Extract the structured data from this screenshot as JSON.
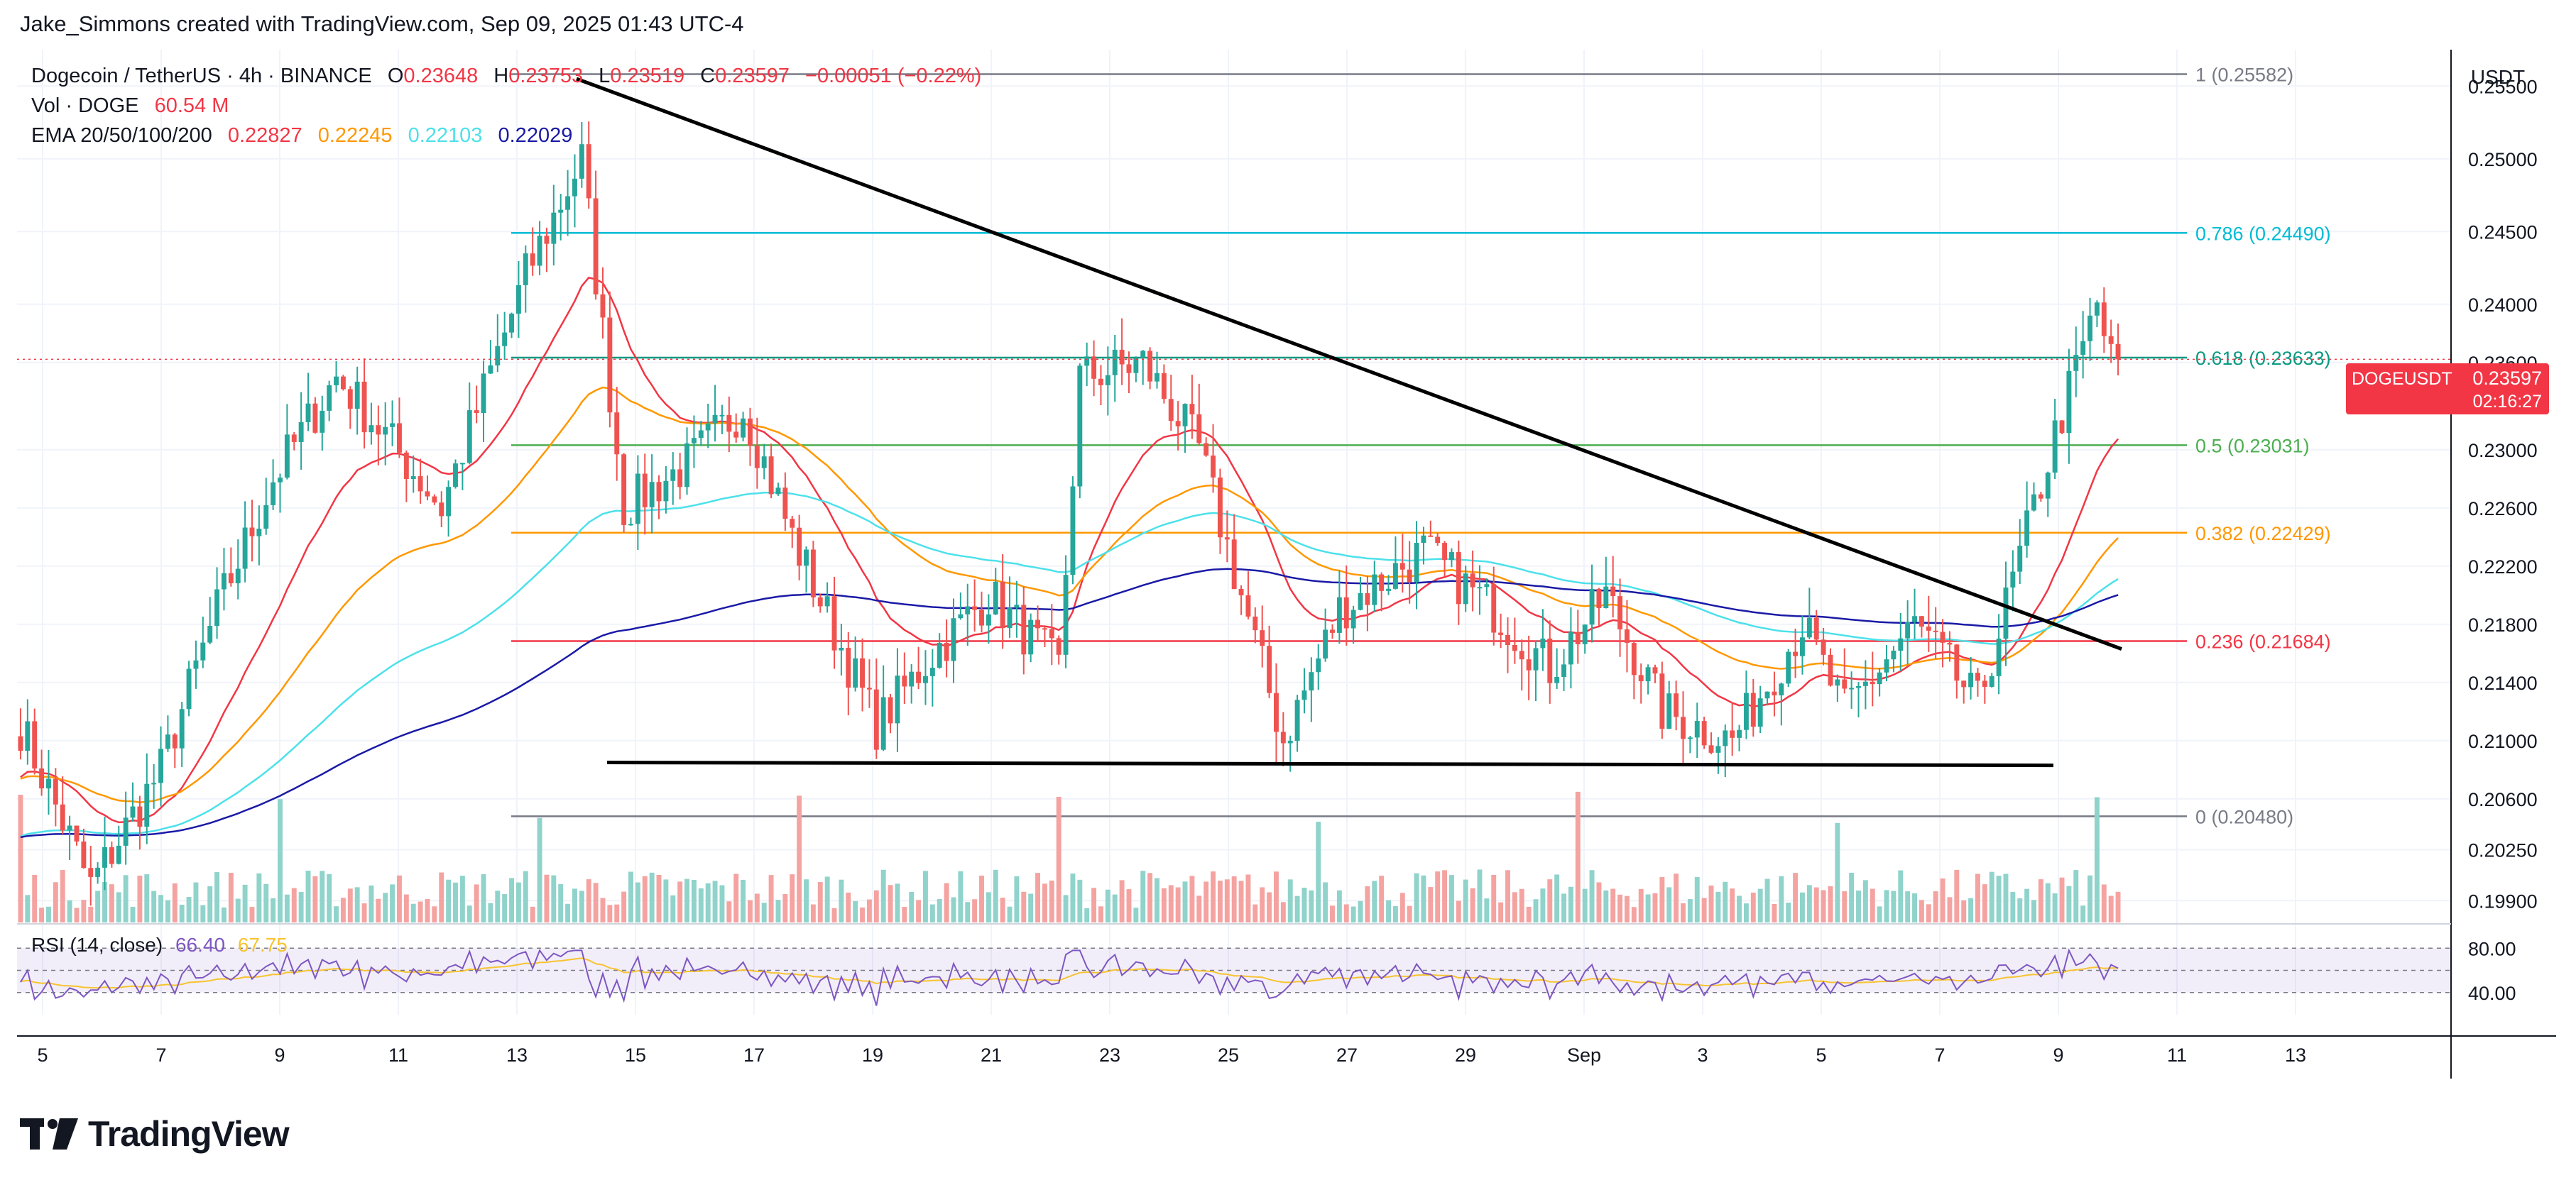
{
  "header": {
    "attribution": "Jake_Simmons created with TradingView.com, Sep 09, 2025 01:43 UTC-4"
  },
  "legend": {
    "symbol": "Dogecoin / TetherUS · 4h · BINANCE",
    "ohlc": [
      {
        "k": "O",
        "v": "0.23648"
      },
      {
        "k": "H",
        "v": "0.23753"
      },
      {
        "k": "L",
        "v": "0.23519"
      },
      {
        "k": "C",
        "v": "0.23597"
      }
    ],
    "change": "−0.00051 (−0.22%)",
    "vol_label": "Vol · DOGE",
    "vol_value": "60.54 M",
    "ema_label": "EMA 20/50/100/200",
    "ema_values": [
      {
        "v": "0.22827",
        "color": "#f23645"
      },
      {
        "v": "0.22245",
        "color": "#ff9800"
      },
      {
        "v": "0.22103",
        "color": "#4de1ea"
      },
      {
        "v": "0.22029",
        "color": "#1a1aa6"
      }
    ]
  },
  "rsi": {
    "label": "RSI (14, close)",
    "value": "66.40",
    "ma_value": "67.75",
    "upper": "80.00",
    "lower": "40.00"
  },
  "price_tag": {
    "symbol": "DOGEUSDT",
    "price": "0.23597",
    "countdown": "02:16:27"
  },
  "currency": "USDT",
  "branding": "TradingView",
  "colors": {
    "up": "#26a69a",
    "down": "#ef5350",
    "vol_up": "#8fd3cb",
    "vol_down": "#f4a3a1",
    "fib0": "#787b86",
    "fib236": "#f23645",
    "fib382": "#ff9800",
    "fib5": "#4caf50",
    "fib618": "#089981",
    "fib786": "#00bcd4",
    "fib1": "#787b86"
  },
  "chart_data": {
    "type": "candlestick",
    "timeframe": "4h",
    "ylim": [
      0.1975,
      0.2575
    ],
    "y_ticks": [
      "0.25500",
      "0.25000",
      "0.24500",
      "0.24000",
      "0.23600",
      "0.23000",
      "0.22600",
      "0.22200",
      "0.21800",
      "0.21400",
      "0.21000",
      "0.20600",
      "0.20250",
      "0.19900"
    ],
    "x_ticks": [
      "5",
      "7",
      "9",
      "11",
      "13",
      "15",
      "17",
      "19",
      "21",
      "23",
      "25",
      "27",
      "29",
      "Sep",
      "3",
      "5",
      "7",
      "9",
      "11",
      "13"
    ],
    "fib_levels": [
      {
        "ratio": "1",
        "label": "1 (0.25582)",
        "value": 0.25582
      },
      {
        "ratio": "0.786",
        "label": "0.786 (0.24490)",
        "value": 0.2449
      },
      {
        "ratio": "0.618",
        "label": "0.618 (0.23633)",
        "value": 0.23633
      },
      {
        "ratio": "0.5",
        "label": "0.5 (0.23031)",
        "value": 0.23031
      },
      {
        "ratio": "0.382",
        "label": "0.382 (0.22429)",
        "value": 0.22429
      },
      {
        "ratio": "0.236",
        "label": "0.236 (0.21684)",
        "value": 0.21684
      },
      {
        "ratio": "0",
        "label": "0 (0.20480)",
        "value": 0.2048
      }
    ],
    "trendlines": [
      {
        "name": "descending resistance",
        "from": [
          0.0,
          0.2555
        ],
        "to": [
          1.0,
          0.2163
        ]
      },
      {
        "name": "horizontal support",
        "from": [
          0.0,
          0.2085
        ],
        "to": [
          1.0,
          0.2083
        ]
      }
    ],
    "anchors": [
      {
        "t": 0,
        "c": 0.211
      },
      {
        "t": 10,
        "c": 0.2
      },
      {
        "t": 20,
        "c": 0.208
      },
      {
        "t": 28,
        "c": 0.219
      },
      {
        "t": 36,
        "c": 0.228
      },
      {
        "t": 45,
        "c": 0.235
      },
      {
        "t": 52,
        "c": 0.231
      },
      {
        "t": 60,
        "c": 0.226
      },
      {
        "t": 72,
        "c": 0.242
      },
      {
        "t": 80,
        "c": 0.25
      },
      {
        "t": 86,
        "c": 0.226
      },
      {
        "t": 95,
        "c": 0.229
      },
      {
        "t": 103,
        "c": 0.233
      },
      {
        "t": 110,
        "c": 0.224
      },
      {
        "t": 122,
        "c": 0.211
      },
      {
        "t": 130,
        "c": 0.216
      },
      {
        "t": 138,
        "c": 0.22
      },
      {
        "t": 148,
        "c": 0.215
      },
      {
        "t": 151,
        "c": 0.235
      },
      {
        "t": 160,
        "c": 0.236
      },
      {
        "t": 168,
        "c": 0.23
      },
      {
        "t": 174,
        "c": 0.22
      },
      {
        "t": 180,
        "c": 0.21
      },
      {
        "t": 188,
        "c": 0.219
      },
      {
        "t": 200,
        "c": 0.223
      },
      {
        "t": 210,
        "c": 0.219
      },
      {
        "t": 218,
        "c": 0.215
      },
      {
        "t": 226,
        "c": 0.22
      },
      {
        "t": 234,
        "c": 0.212
      },
      {
        "t": 244,
        "c": 0.21
      },
      {
        "t": 254,
        "c": 0.218
      },
      {
        "t": 260,
        "c": 0.212
      },
      {
        "t": 270,
        "c": 0.218
      },
      {
        "t": 279,
        "c": 0.2125
      },
      {
        "t": 290,
        "c": 0.231
      },
      {
        "t": 296,
        "c": 0.24
      },
      {
        "t": 298,
        "c": 0.236
      }
    ],
    "rsi_ylim": [
      20,
      100
    ],
    "rsi_levels": [
      80,
      60,
      40
    ]
  }
}
